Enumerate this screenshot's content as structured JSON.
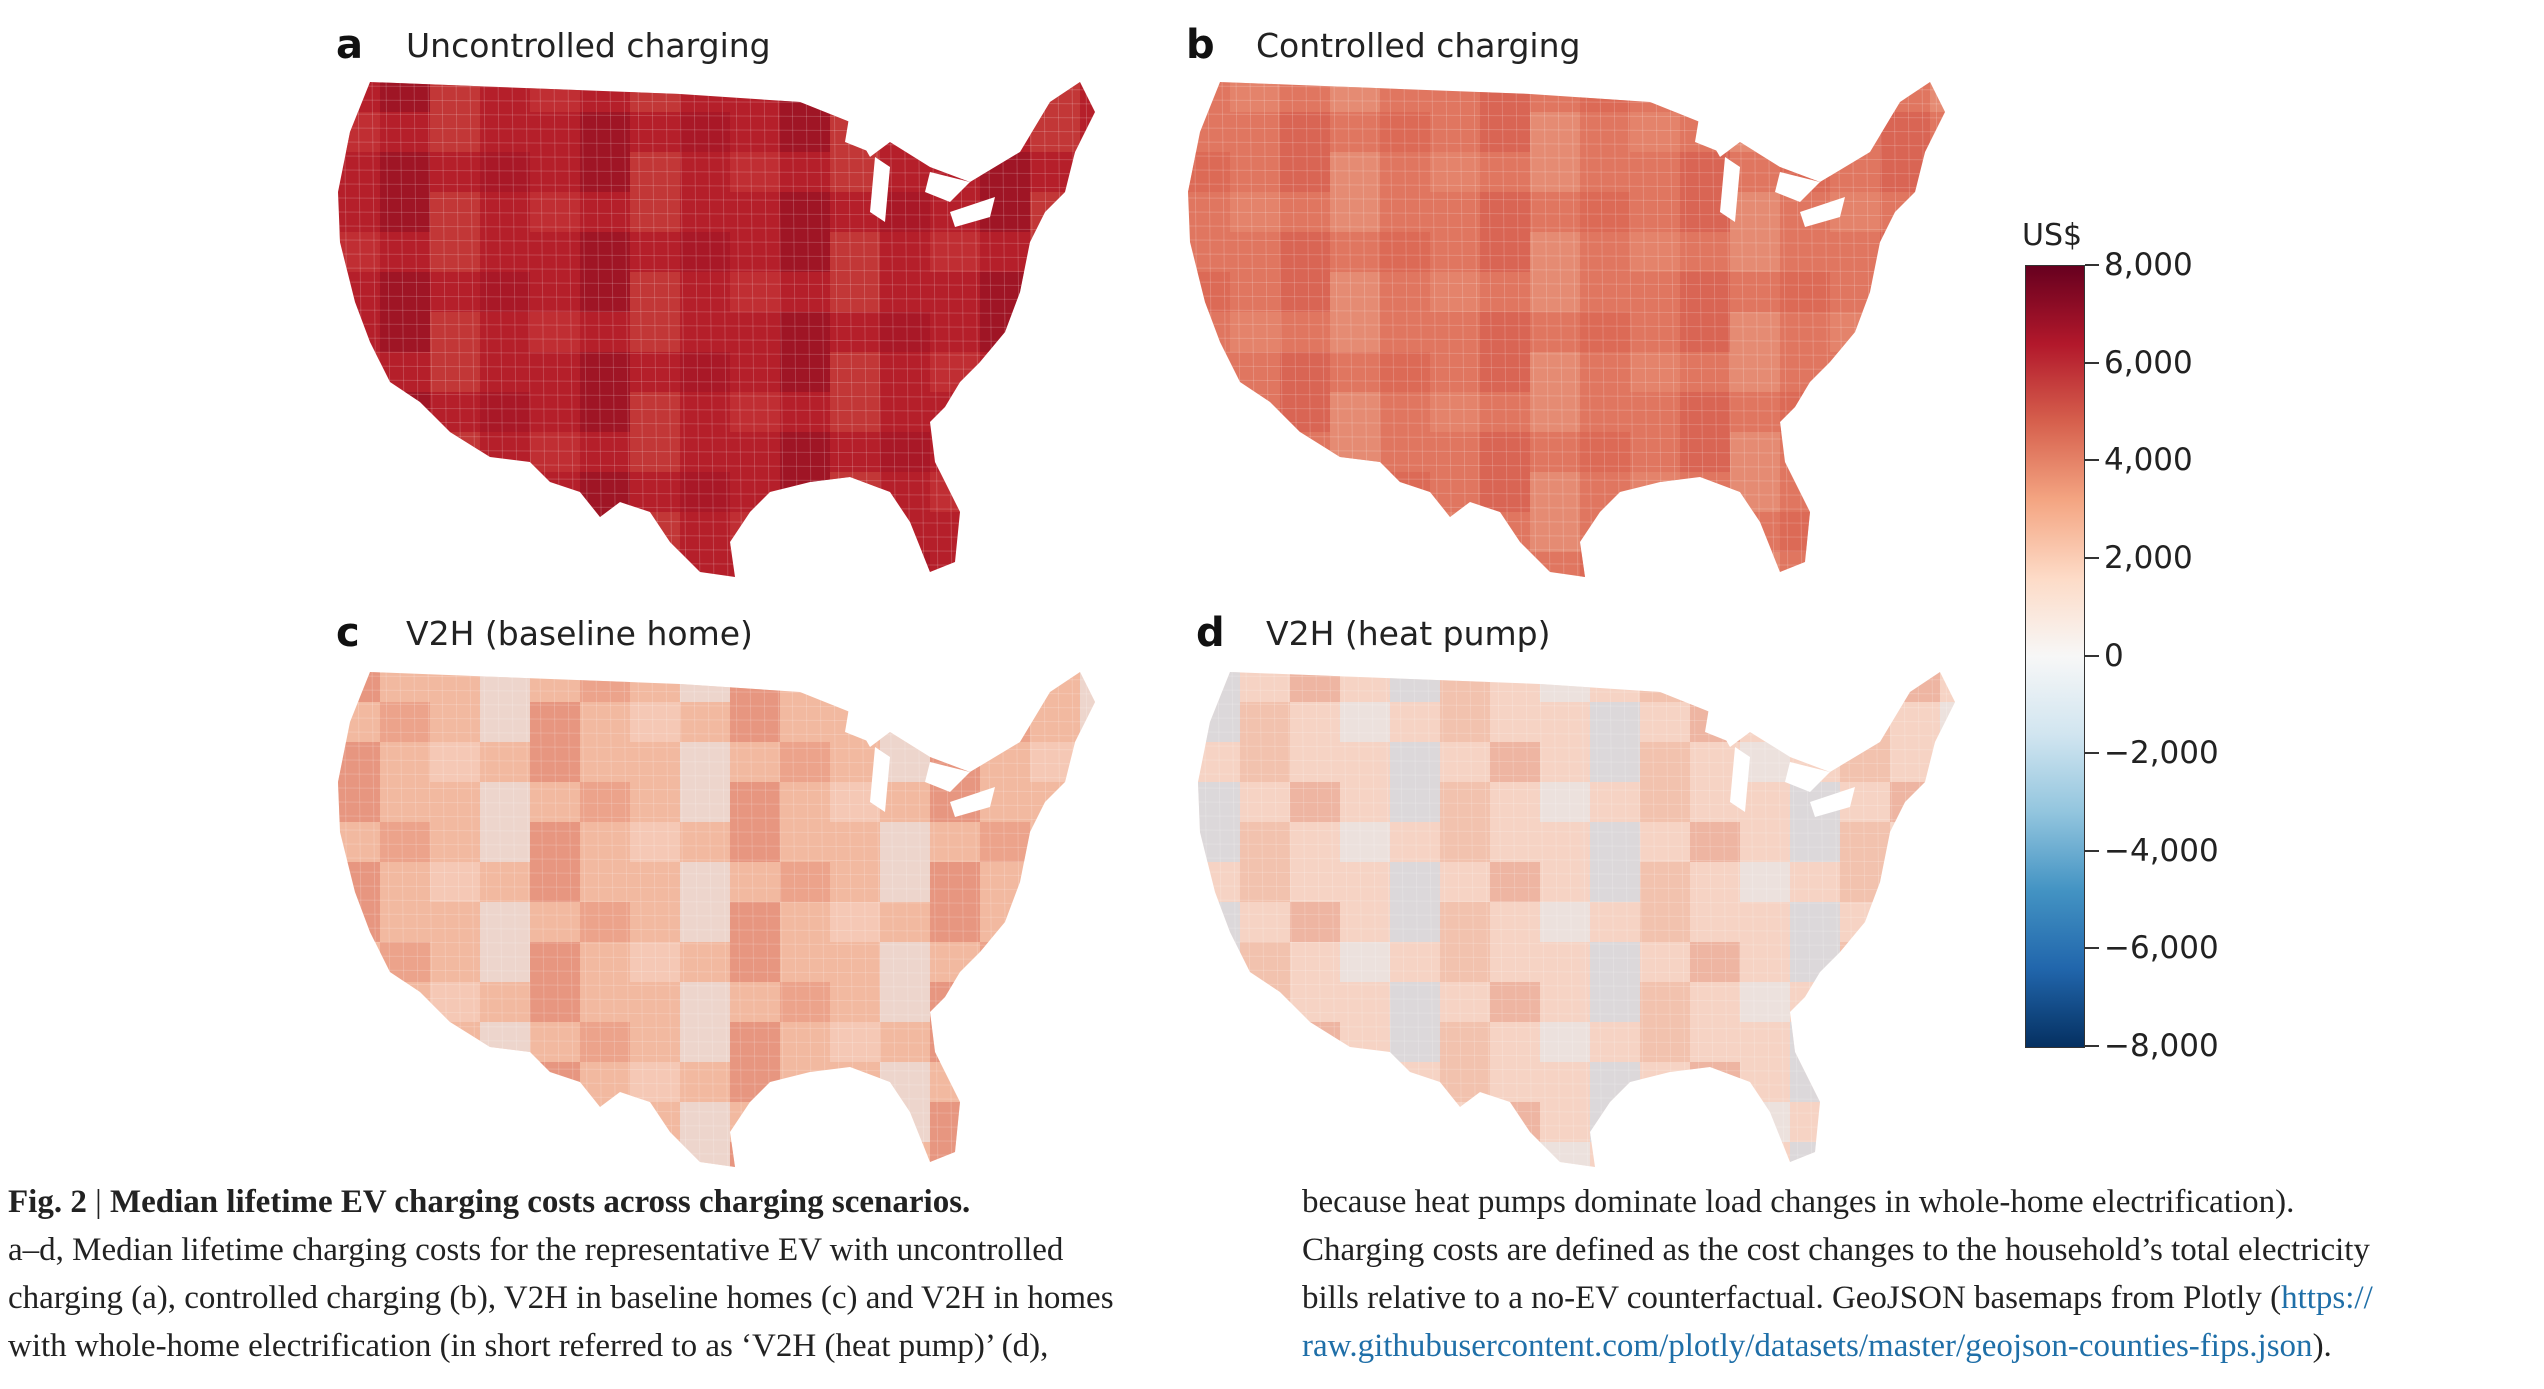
{
  "figure": {
    "panels": [
      {
        "letter": "a",
        "title": "Uncontrolled charging",
        "fill": "#b51f2a",
        "accents": [
          "#9f1224",
          "#c93a3a",
          "#8c0d20",
          "#cc4b42"
        ]
      },
      {
        "letter": "b",
        "title": "Controlled charging",
        "fill": "#e07660",
        "accents": [
          "#d9604f",
          "#e88e75",
          "#d4574a",
          "#ea9c83"
        ]
      },
      {
        "letter": "c",
        "title": "V2H (baseline home)",
        "fill": "#f2b9a0",
        "accents": [
          "#e8917a",
          "#f7d6c6",
          "#e9edf0",
          "#df7a66"
        ]
      },
      {
        "letter": "d",
        "title": "V2H (heat pump)",
        "fill": "#f6d3c4",
        "accents": [
          "#e89c86",
          "#e3edf3",
          "#c6ddec",
          "#efb49c"
        ]
      }
    ],
    "colorbar": {
      "unit": "US$",
      "ticks": [
        "8,000",
        "6,000",
        "4,000",
        "2,000",
        "0",
        "−2,000",
        "−4,000",
        "−6,000",
        "−8,000"
      ],
      "colors": [
        "#67001f",
        "#b2182b",
        "#d6604d",
        "#f4a582",
        "#fddbc7",
        "#f7f7f7",
        "#d1e5f0",
        "#92c5de",
        "#4393c3",
        "#2166ac",
        "#053061"
      ]
    },
    "caption": {
      "fig_label": "Fig. 2",
      "separator": " | ",
      "heading": "Median lifetime EV charging costs across charging scenarios.",
      "left_lines": [
        "a–d, Median lifetime charging costs for the representative EV with uncontrolled",
        "charging (a), controlled charging (b), V2H in baseline homes (c) and V2H in homes",
        "with whole-home electrification (in short referred to as ‘V2H (heat pump)’ (d),"
      ],
      "right_lines": [
        "because heat pumps dominate load changes in whole-home electrification).",
        "Charging costs are defined as the cost changes to the household’s total electricity",
        "bills relative to a no-EV counterfactual. GeoJSON basemaps from Plotly ("
      ],
      "link_part1": "https://",
      "link_part2": "raw.githubusercontent.com/plotly/datasets/master/geojson-counties-fips.json",
      "end_text": ")."
    }
  }
}
